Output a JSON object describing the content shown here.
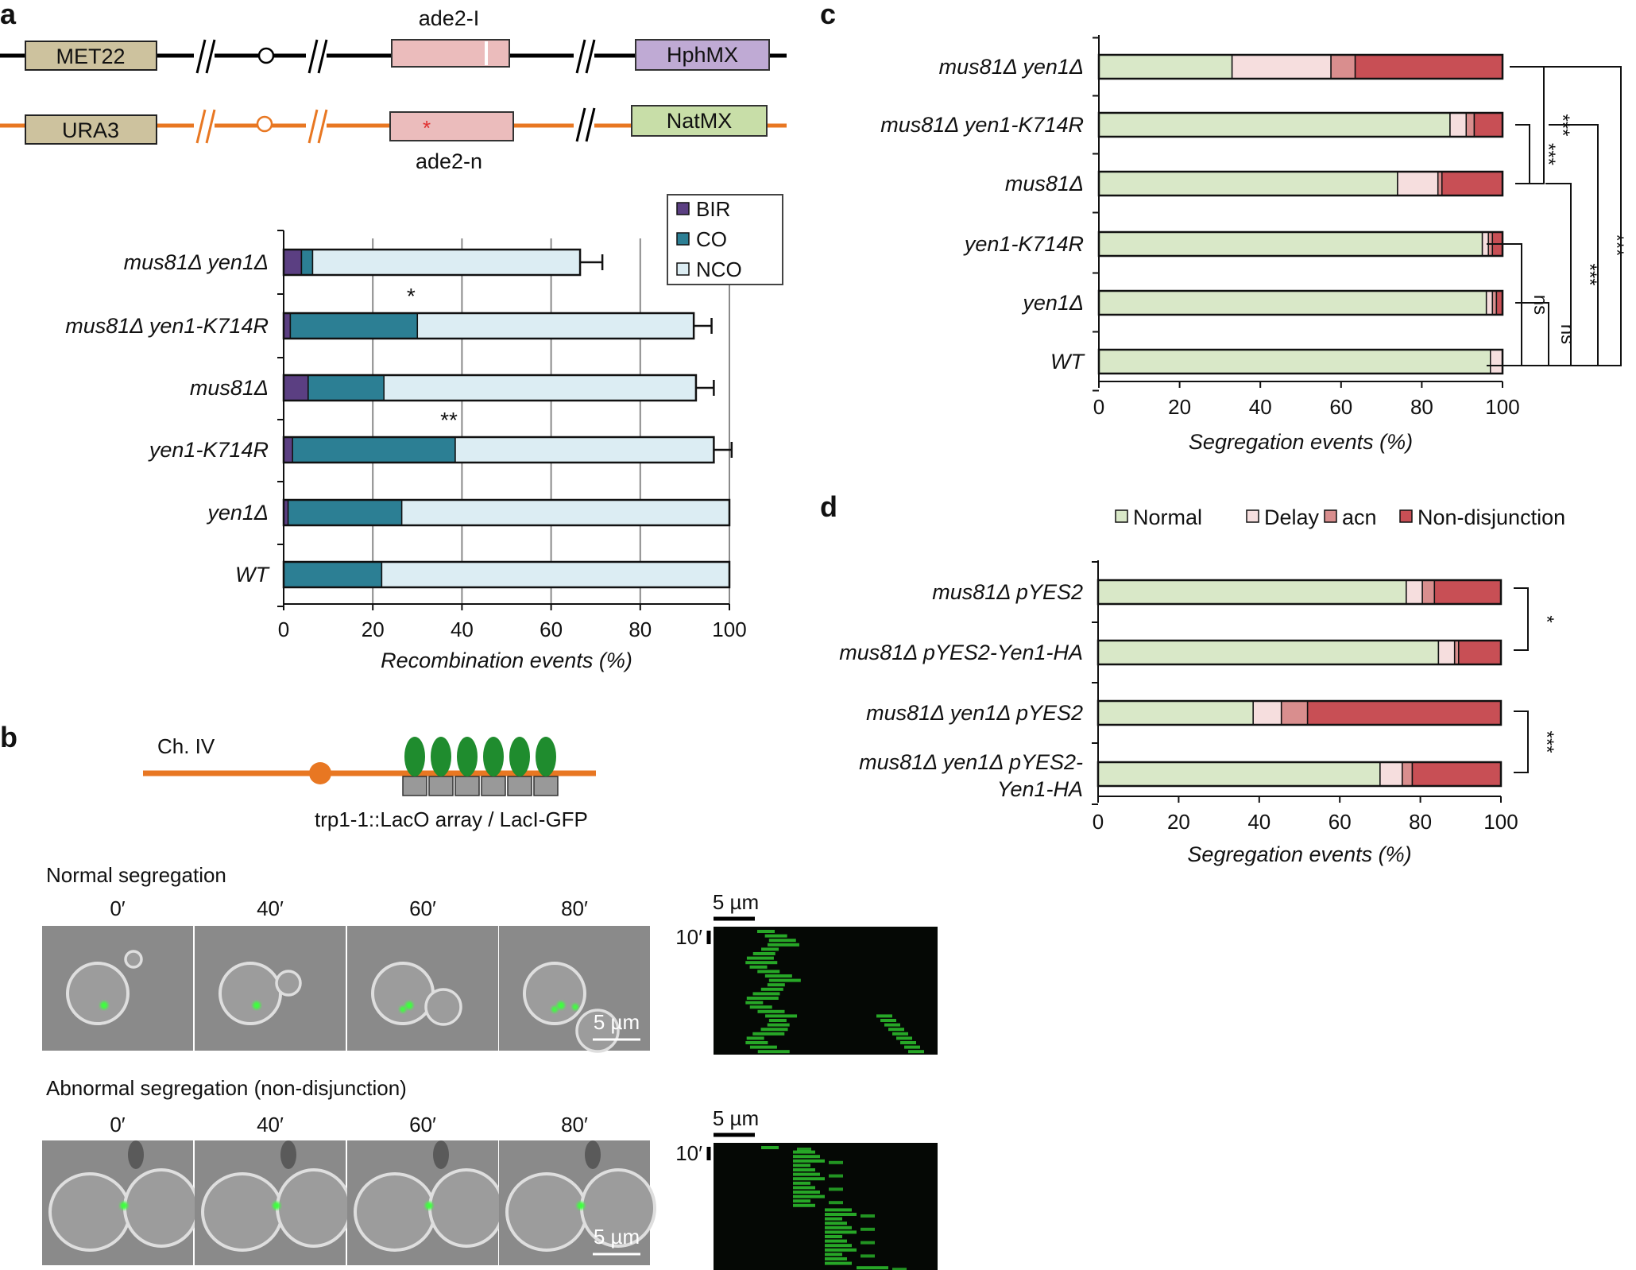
{
  "panels": {
    "a": "a",
    "b": "b",
    "c": "c",
    "d": "d"
  },
  "panel_a": {
    "construct_top": {
      "left_box": "MET22",
      "mid_box": "ade2-I",
      "right_box": "HphMX"
    },
    "construct_bottom": {
      "left_box": "URA3",
      "mid_box": "ade2-n",
      "right_box": "NatMX"
    },
    "colors": {
      "top_line": "#000000",
      "bottom_line": "#e87722",
      "met22": "#cdc29e",
      "ade2": "#ebbcbc",
      "hphmx": "#bfaad4",
      "natmx": "#c8dea8"
    }
  },
  "panel_b": {
    "chromosome_label": "Ch. IV",
    "array_label": "trp1-1::LacO array / LacI-GFP",
    "normal_title": "Normal segregation",
    "abnormal_title": "Abnormal segregation (non-disjunction)",
    "times": [
      "0′",
      "40′",
      "60′",
      "80′"
    ],
    "scale_label": "5 µm",
    "kymo_time": "10′",
    "colors": {
      "chromosome": "#e87722",
      "gfp": "#1f8c2e"
    }
  },
  "chart_data": [
    {
      "id": "a",
      "type": "bar",
      "orientation": "horizontal",
      "stacked": true,
      "categories": [
        "mus81Δ yen1Δ",
        "mus81Δ yen1-K714R",
        "mus81Δ",
        "yen1-K714R",
        "yen1Δ",
        "WT"
      ],
      "series": [
        {
          "name": "BIR",
          "color": "#5b3f82",
          "values": [
            4,
            1.5,
            5.5,
            2,
            1,
            0
          ]
        },
        {
          "name": "CO",
          "color": "#2c7f94",
          "values": [
            2.5,
            28.5,
            17,
            36.5,
            25.5,
            22
          ]
        },
        {
          "name": "NCO",
          "color": "#dcedf3",
          "values": [
            60,
            62,
            70,
            58,
            73.5,
            78
          ]
        }
      ],
      "error": [
        5,
        4,
        4,
        4,
        0,
        0
      ],
      "annotations": [
        "",
        "*",
        "",
        "**",
        "",
        ""
      ],
      "xlabel": "Recombination events (%)",
      "xlim": [
        0,
        100
      ],
      "xticks": [
        0,
        20,
        40,
        60,
        80,
        100
      ],
      "legend": "top-right",
      "grid": true
    },
    {
      "id": "c",
      "type": "bar",
      "orientation": "horizontal",
      "stacked": true,
      "categories": [
        "mus81Δ yen1Δ",
        "mus81Δ yen1-K714R",
        "mus81Δ",
        "yen1-K714R",
        "yen1Δ",
        "WT"
      ],
      "series": [
        {
          "name": "Normal",
          "color": "#d9e8c8",
          "values": [
            33,
            87,
            74,
            95,
            96,
            97
          ]
        },
        {
          "name": "Delay",
          "color": "#f6dede",
          "values": [
            24.5,
            4,
            10,
            1.5,
            1.5,
            3
          ]
        },
        {
          "name": "acn",
          "color": "#d98e8e",
          "values": [
            6,
            2,
            1,
            1,
            1,
            0
          ]
        },
        {
          "name": "Non-disjunction",
          "color": "#c84f55",
          "values": [
            36.5,
            7,
            15,
            2.5,
            1.5,
            0
          ]
        }
      ],
      "xlabel": "Segregation events (%)",
      "xlim": [
        0,
        100
      ],
      "xticks": [
        0,
        20,
        40,
        60,
        80,
        100
      ],
      "significance": [
        "***",
        "***",
        "***",
        "***",
        "***",
        "ns",
        "ns"
      ]
    },
    {
      "id": "d",
      "type": "bar",
      "orientation": "horizontal",
      "stacked": true,
      "categories": [
        "mus81Δ pYES2",
        "mus81Δ pYES2-Yen1-HA",
        "mus81Δ yen1Δ pYES2",
        "mus81Δ yen1Δ pYES2-|Yen1-HA"
      ],
      "series": [
        {
          "name": "Normal",
          "color": "#d9e8c8",
          "values": [
            76.5,
            84.5,
            38.5,
            70
          ]
        },
        {
          "name": "Delay",
          "color": "#f6dede",
          "values": [
            4,
            4,
            7,
            5.5
          ]
        },
        {
          "name": "acn",
          "color": "#d98e8e",
          "values": [
            3,
            1,
            6.5,
            2.5
          ]
        },
        {
          "name": "Non-disjunction",
          "color": "#c84f55",
          "values": [
            16.5,
            10.5,
            48,
            22
          ]
        }
      ],
      "xlabel": "Segregation events (%)",
      "xlim": [
        0,
        100
      ],
      "xticks": [
        0,
        20,
        40,
        60,
        80,
        100
      ],
      "legend": "top",
      "significance": [
        "*",
        "***"
      ]
    }
  ]
}
